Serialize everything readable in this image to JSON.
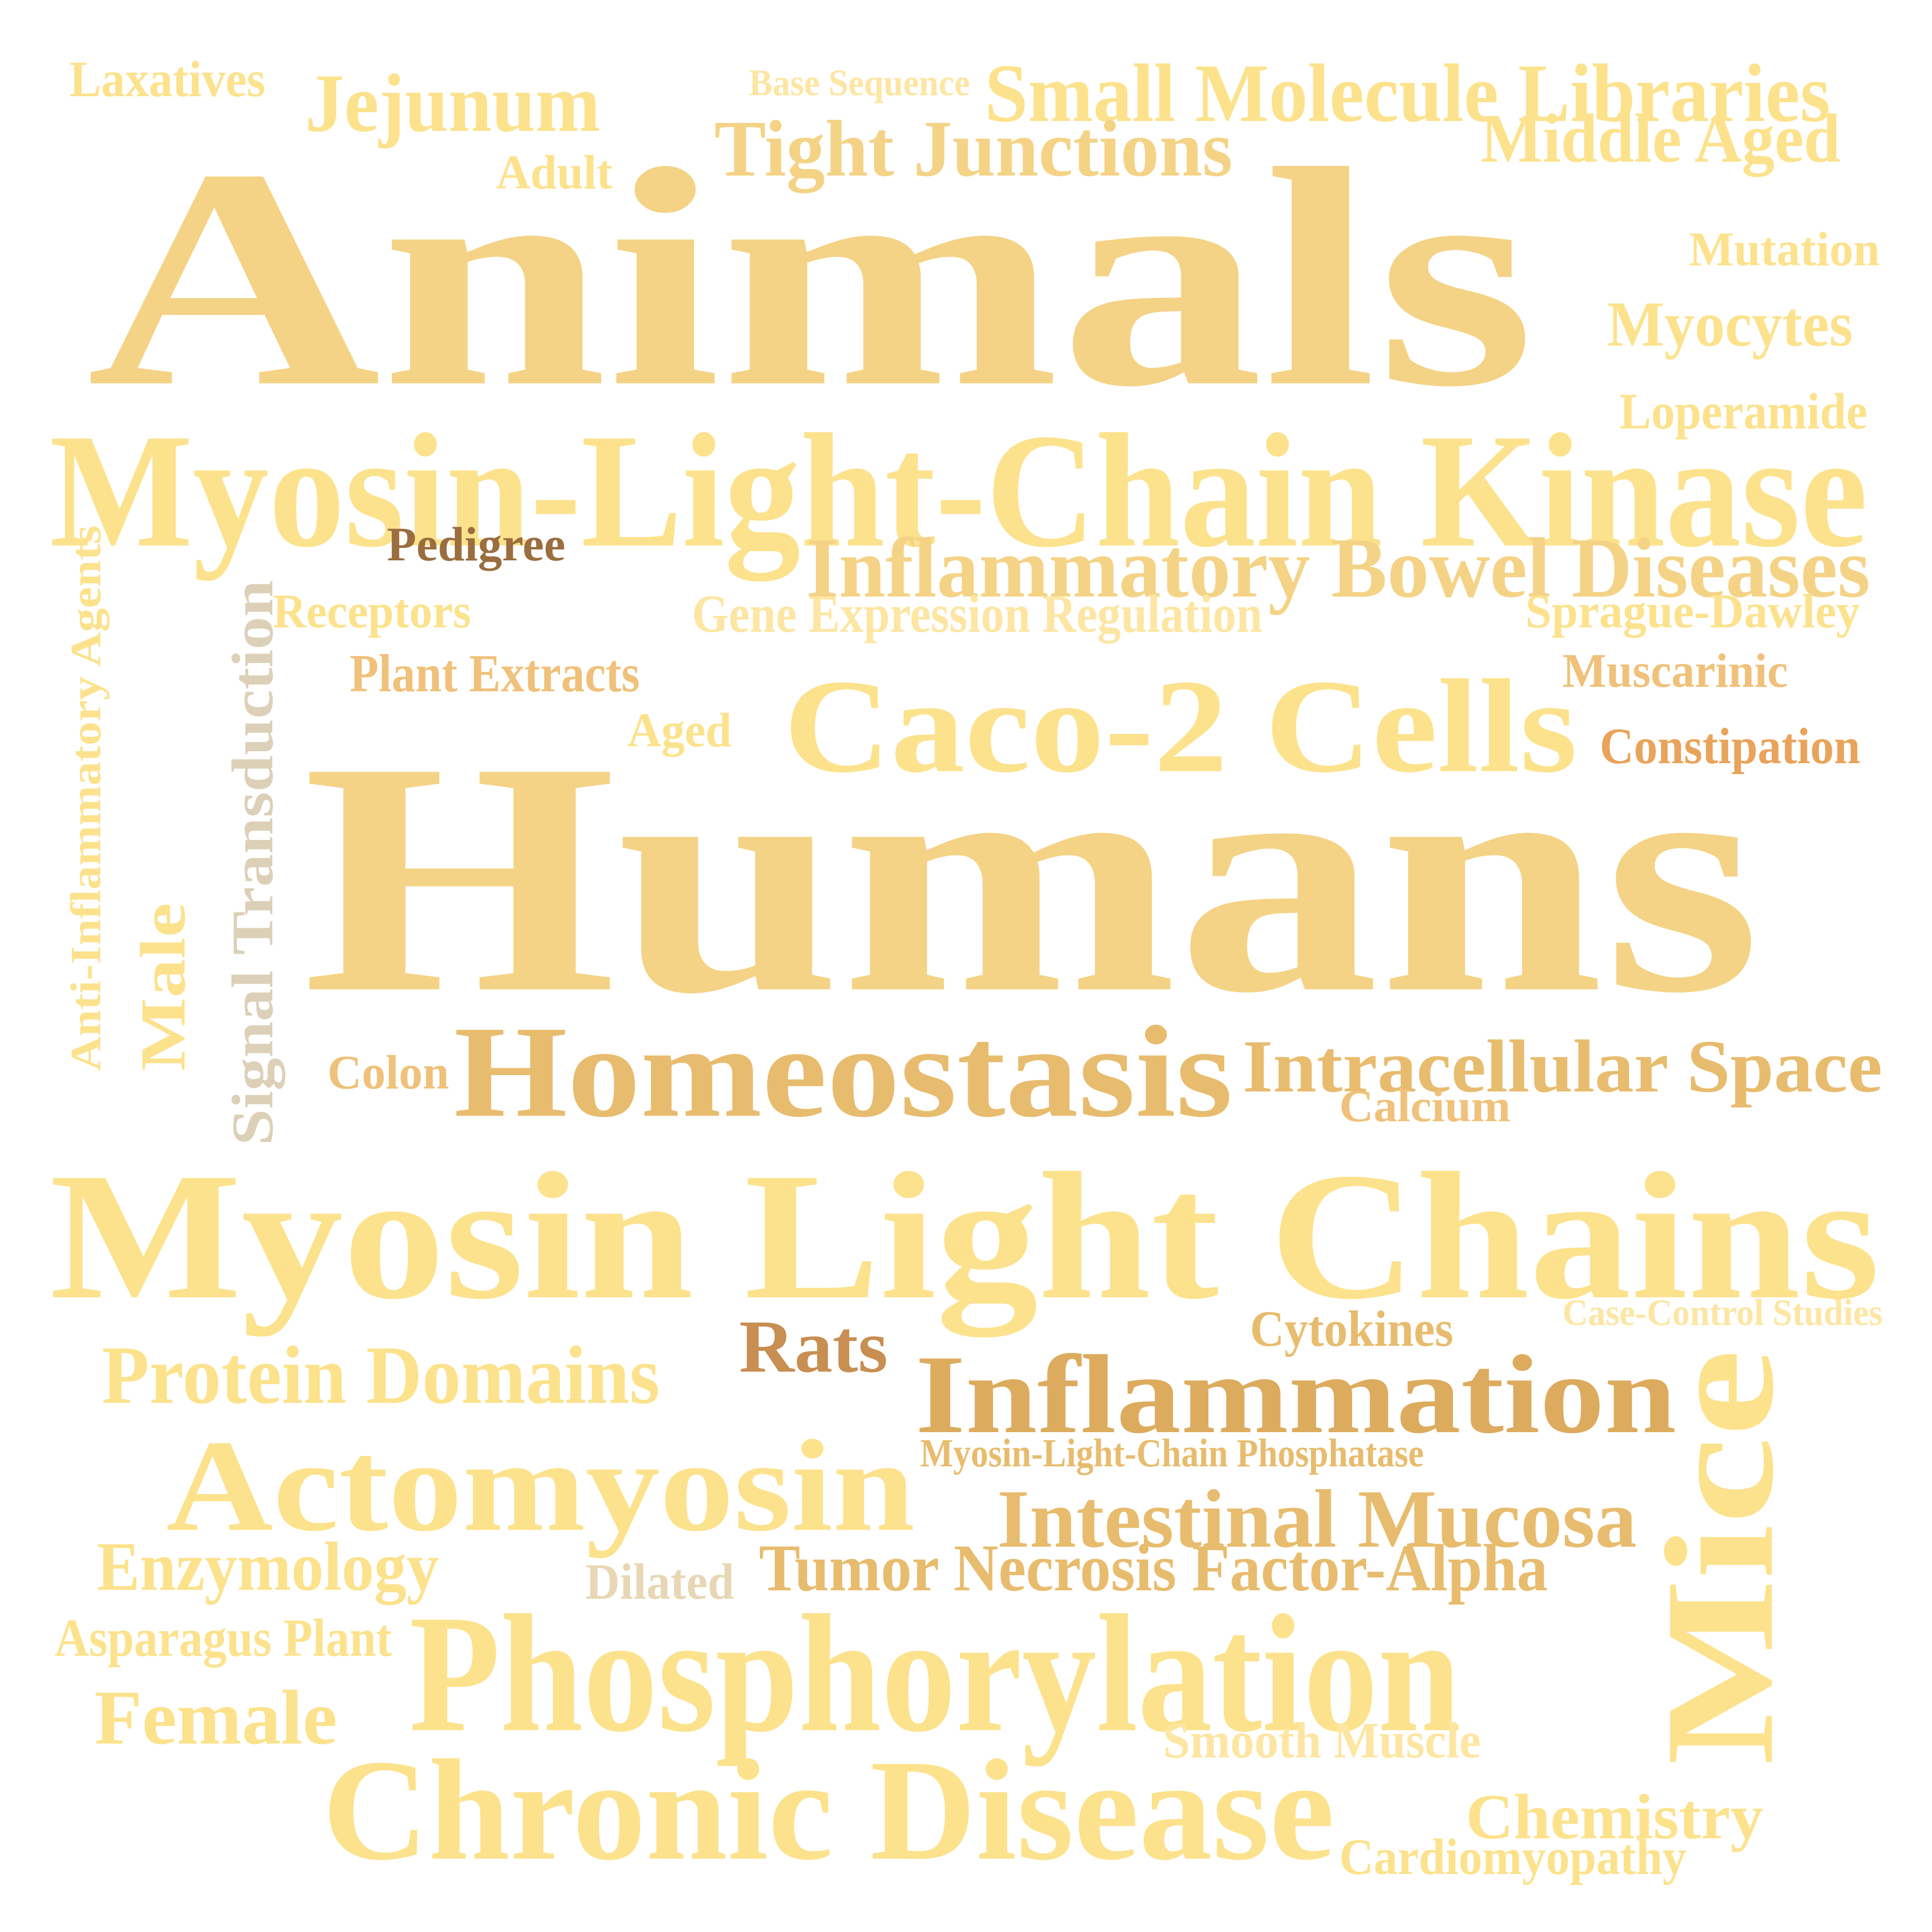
{
  "colors": {
    "yellow": "#fce28c",
    "yellow_light": "#fde6a3",
    "gold": "#f4d386",
    "tan": "#e8bc6e",
    "tan_dark": "#ddab5e",
    "orange": "#e9a35a",
    "orange_light": "#f0c17a",
    "brown": "#c88e52",
    "brown_dark": "#9a6e3f",
    "beige": "#e8d7b5",
    "grey_beige": "#dcd0b8"
  },
  "words": {
    "laxatives": "Laxatives",
    "jejunum": "Jejunum",
    "base_sequence": "Base Sequence",
    "small_molecule_libraries": "Small Molecule Libraries",
    "middle_aged": "Middle Aged",
    "tight_junctions": "Tight Junctions",
    "adult": "Adult",
    "animals": "Animals",
    "mutation": "Mutation",
    "myocytes": "Myocytes",
    "loperamide": "Loperamide",
    "myosin_light_chain_kinase": "Myosin-Light-Chain Kinase",
    "pedigree": "Pedigree",
    "inflammatory_bowel_diseases": "Inflammatory Bowel Diseases",
    "anti_inflammatory_agents": "Anti-Inflammatory Agents",
    "signal_transduction": "Signal Transduction",
    "receptors": "Receptors",
    "gene_expression_regulation": "Gene Expression Regulation",
    "sprague_dawley": "Sprague-Dawley",
    "plant_extracts": "Plant Extracts",
    "muscarinic": "Muscarinic",
    "caco2_cells": "Caco-2 Cells",
    "aged": "Aged",
    "constipation": "Constipation",
    "humans": "Humans",
    "male": "Male",
    "colon": "Colon",
    "homeostasis": "Homeostasis",
    "intracellular_space": "Intracellular Space",
    "calcium": "Calcium",
    "myosin_light_chains": "Myosin Light Chains",
    "case_control_studies": "Case-Control Studies",
    "cytokines": "Cytokines",
    "rats": "Rats",
    "protein_domains": "Protein Domains",
    "inflammation": "Inflammation",
    "mice": "Mice",
    "myosin_light_chain_phosphatase": "Myosin-Light-Chain Phosphatase",
    "actomyosin": "Actomyosin",
    "intestinal_mucosa": "Intestinal Mucosa",
    "enzymology": "Enzymology",
    "dilated": "Dilated",
    "tumor_necrosis_factor_alpha": "Tumor Necrosis Factor-Alpha",
    "asparagus_plant": "Asparagus Plant",
    "phosphorylation": "Phosphorylation",
    "female": "Female",
    "smooth_muscle": "Smooth Muscle",
    "chronic_disease": "Chronic Disease",
    "chemistry": "Chemistry",
    "cardiomyopathy": "Cardiomyopathy"
  }
}
